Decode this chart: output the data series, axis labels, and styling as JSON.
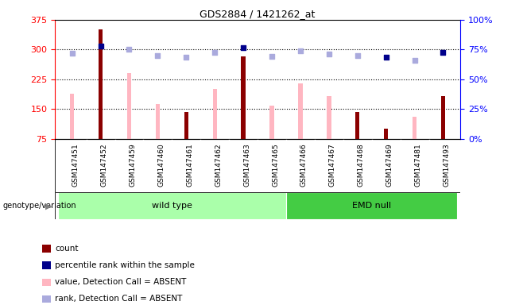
{
  "title": "GDS2884 / 1421262_at",
  "samples": [
    "GSM147451",
    "GSM147452",
    "GSM147459",
    "GSM147460",
    "GSM147461",
    "GSM147462",
    "GSM147463",
    "GSM147465",
    "GSM147466",
    "GSM147467",
    "GSM147468",
    "GSM147469",
    "GSM147481",
    "GSM147493"
  ],
  "count_present": [
    null,
    350,
    null,
    null,
    143,
    null,
    283,
    null,
    null,
    null,
    143,
    100,
    null,
    183
  ],
  "count_absent": [
    188,
    null,
    240,
    163,
    null,
    200,
    null,
    158,
    215,
    183,
    null,
    null,
    130,
    null
  ],
  "rank_present": [
    null,
    308,
    null,
    null,
    null,
    null,
    305,
    null,
    null,
    null,
    null,
    280,
    null,
    292
  ],
  "rank_absent": [
    290,
    null,
    300,
    284,
    280,
    292,
    null,
    283,
    296,
    289,
    284,
    null,
    273,
    null
  ],
  "ylim_left": [
    75,
    375
  ],
  "ylim_right": [
    0,
    100
  ],
  "yticks_left": [
    75,
    150,
    225,
    300,
    375
  ],
  "yticks_right": [
    0,
    25,
    50,
    75,
    100
  ],
  "groups": [
    {
      "label": "wild type",
      "start": 0,
      "end": 8,
      "color": "#aaffaa"
    },
    {
      "label": "EMD null",
      "start": 8,
      "end": 14,
      "color": "#44cc44"
    }
  ],
  "bar_width": 0.15,
  "color_count_present": "#8b0000",
  "color_count_absent": "#ffb6c1",
  "color_rank_present": "#00008b",
  "color_rank_absent": "#aaaadd",
  "xtick_bg": "#c8c8c8",
  "plot_bg": "#ffffff"
}
